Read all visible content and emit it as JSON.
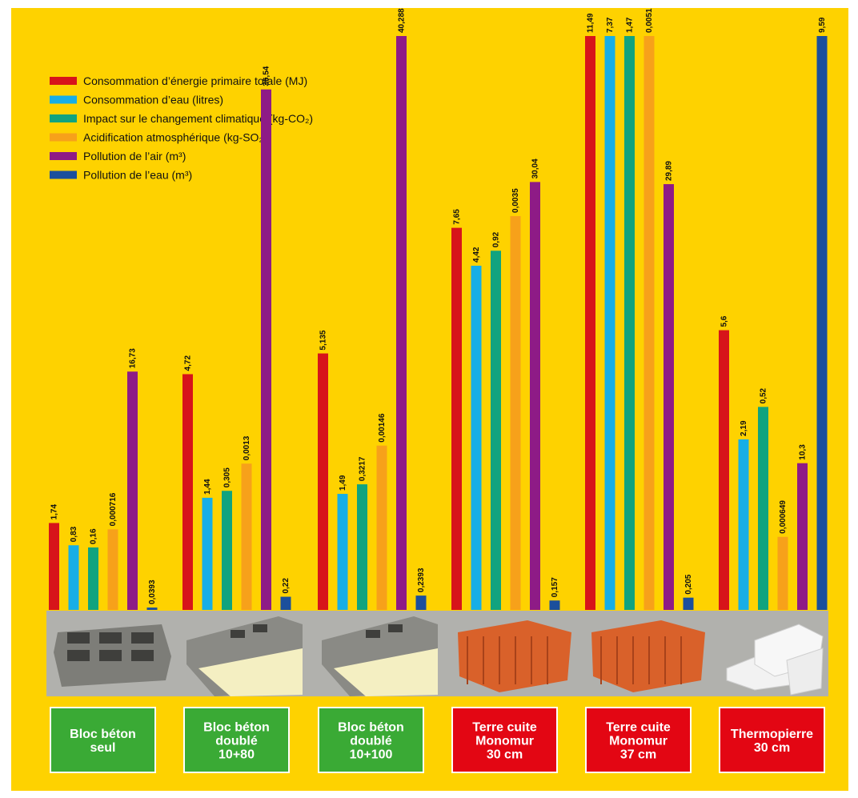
{
  "chart_data": {
    "type": "bar",
    "categories": [
      [
        "Bloc béton",
        "seul"
      ],
      [
        "Bloc béton",
        "doublé",
        "10+80"
      ],
      [
        "Bloc béton",
        "doublé",
        "10+100"
      ],
      [
        "Terre cuite",
        "Monomur",
        "30 cm"
      ],
      [
        "Terre cuite",
        "Monomur",
        "37 cm"
      ],
      [
        "Thermopierre",
        "30 cm"
      ]
    ],
    "category_colors": [
      "#3aaa35",
      "#3aaa35",
      "#3aaa35",
      "#e30613",
      "#e30613",
      "#e30613"
    ],
    "series": [
      {
        "name": "Consommation d’énergie primaire totale (MJ)",
        "color": "#d7141a",
        "labels": [
          "1,74",
          "4,72",
          "5,135",
          "7,65",
          "11,49",
          "5,6"
        ],
        "values": [
          1.74,
          4.72,
          5.135,
          7.65,
          11.49,
          5.6
        ]
      },
      {
        "name": "Consommation d’eau (litres)",
        "color": "#17aee6",
        "labels": [
          "0,83",
          "1,44",
          "1,49",
          "4,42",
          "7,37",
          "2,19"
        ],
        "values": [
          0.83,
          1.44,
          1.49,
          4.42,
          7.37,
          2.19
        ]
      },
      {
        "name": "Impact sur le changement climatique (kg-CO₂)",
        "color": "#11a37f",
        "labels": [
          "0,16",
          "0,305",
          "0,3217",
          "0,92",
          "1,47",
          "0,52"
        ],
        "values": [
          0.16,
          0.305,
          0.3217,
          0.92,
          1.47,
          0.52
        ]
      },
      {
        "name": "Acidification atmosphérique (kg-SO₂)",
        "color": "#f7a11a",
        "labels": [
          "0,000716",
          "0,0013",
          "0,00146",
          "0,0035",
          "0,0051",
          "0,000649"
        ],
        "values": [
          0.000716,
          0.0013,
          0.00146,
          0.0035,
          0.0051,
          0.000649
        ]
      },
      {
        "name": "Pollution de l’air (m³)",
        "color": "#8e1b86",
        "labels": [
          "16,73",
          "36,54",
          "40,288",
          "30,04",
          "29,89",
          "10,3"
        ],
        "values": [
          16.73,
          36.54,
          40.288,
          30.04,
          29.89,
          10.3
        ]
      },
      {
        "name": "Pollution de l’eau (m³)",
        "color": "#1b4f9c",
        "labels": [
          "0,0393",
          "0,22",
          "0,2393",
          "0,157",
          "0,205",
          "9,59"
        ],
        "values": [
          0.0393,
          0.22,
          0.2393,
          0.157,
          0.205,
          9.59
        ]
      }
    ],
    "legend_position": "top-left",
    "grid": false,
    "title": "",
    "xlabel": "",
    "ylabel": ""
  },
  "colors": {
    "background": "#fed200",
    "image_band": "#b1b1ad"
  }
}
